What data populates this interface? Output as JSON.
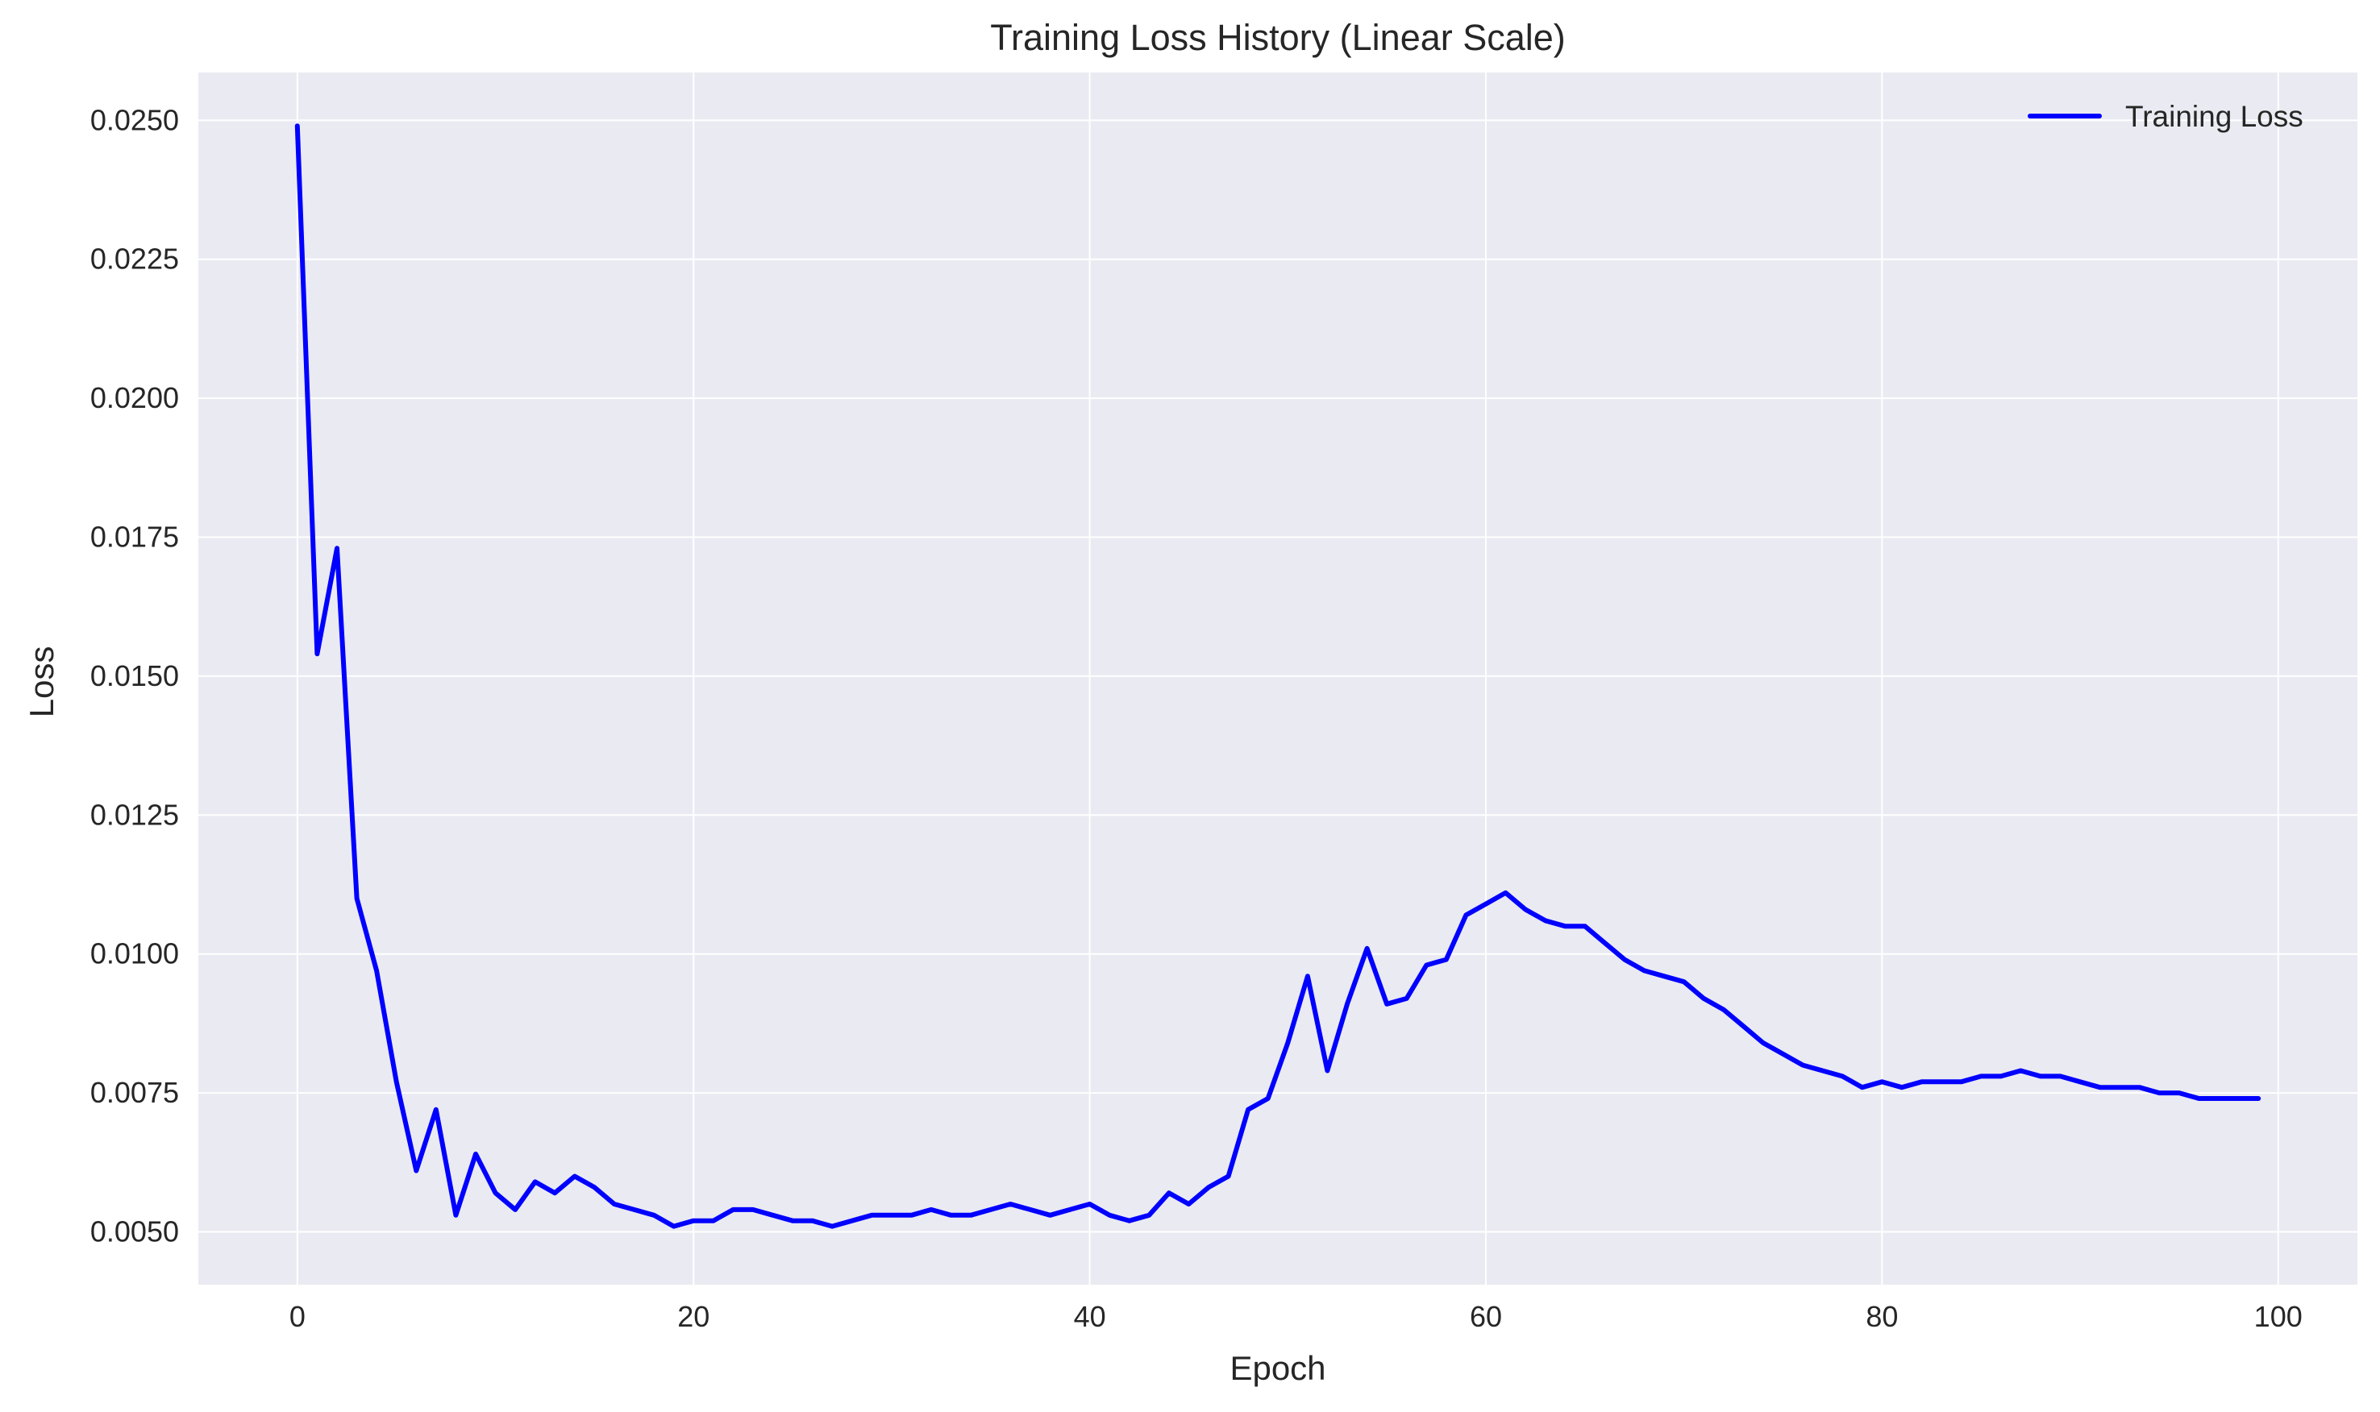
{
  "chart_data": {
    "type": "line",
    "title": "Training Loss History (Linear Scale)",
    "xlabel": "Epoch",
    "ylabel": "Loss",
    "xlim": [
      -5,
      104
    ],
    "ylim": [
      0.00405,
      0.02586
    ],
    "xticks": [
      0,
      20,
      40,
      60,
      80,
      100
    ],
    "xtick_labels": [
      "0",
      "20",
      "40",
      "60",
      "80",
      "100"
    ],
    "yticks": [
      0.005,
      0.0075,
      0.01,
      0.0125,
      0.015,
      0.0175,
      0.02,
      0.0225,
      0.025
    ],
    "ytick_labels": [
      "0.0050",
      "0.0075",
      "0.0100",
      "0.0125",
      "0.0150",
      "0.0175",
      "0.0200",
      "0.0225",
      "0.0250"
    ],
    "grid": true,
    "legend_position": "top-right",
    "background_color": "#eaeaf2",
    "series": [
      {
        "name": "Training Loss",
        "color": "#0000ff",
        "x": [
          0,
          1,
          2,
          3,
          4,
          5,
          6,
          7,
          8,
          9,
          10,
          11,
          12,
          13,
          14,
          15,
          16,
          17,
          18,
          19,
          20,
          21,
          22,
          23,
          24,
          25,
          26,
          27,
          28,
          29,
          30,
          31,
          32,
          33,
          34,
          35,
          36,
          37,
          38,
          39,
          40,
          41,
          42,
          43,
          44,
          45,
          46,
          47,
          48,
          49,
          50,
          51,
          52,
          53,
          54,
          55,
          56,
          57,
          58,
          59,
          60,
          61,
          62,
          63,
          64,
          65,
          66,
          67,
          68,
          69,
          70,
          71,
          72,
          73,
          74,
          75,
          76,
          77,
          78,
          79,
          80,
          81,
          82,
          83,
          84,
          85,
          86,
          87,
          88,
          89,
          90,
          91,
          92,
          93,
          94,
          95,
          96,
          97,
          98,
          99
        ],
        "values": [
          0.0249,
          0.0154,
          0.0173,
          0.011,
          0.0097,
          0.0077,
          0.0061,
          0.0072,
          0.0053,
          0.0064,
          0.0057,
          0.0054,
          0.0059,
          0.0057,
          0.006,
          0.0058,
          0.0055,
          0.0054,
          0.0053,
          0.0051,
          0.0052,
          0.0052,
          0.0054,
          0.0054,
          0.0053,
          0.0052,
          0.0052,
          0.0051,
          0.0052,
          0.0053,
          0.0053,
          0.0053,
          0.0054,
          0.0053,
          0.0053,
          0.0054,
          0.0055,
          0.0054,
          0.0053,
          0.0054,
          0.0055,
          0.0053,
          0.0052,
          0.0053,
          0.0057,
          0.0055,
          0.0058,
          0.006,
          0.0072,
          0.0074,
          0.0084,
          0.0096,
          0.0079,
          0.0091,
          0.0101,
          0.0091,
          0.0092,
          0.0098,
          0.0099,
          0.0107,
          0.0109,
          0.0111,
          0.0108,
          0.0106,
          0.0105,
          0.0105,
          0.0102,
          0.0099,
          0.0097,
          0.0096,
          0.0095,
          0.0092,
          0.009,
          0.0087,
          0.0084,
          0.0082,
          0.008,
          0.0079,
          0.0078,
          0.0076,
          0.0077,
          0.0076,
          0.0077,
          0.0077,
          0.0077,
          0.0078,
          0.0078,
          0.0079,
          0.0078,
          0.0078,
          0.0077,
          0.0076,
          0.0076,
          0.0076,
          0.0075,
          0.0075,
          0.0074,
          0.0074,
          0.0074,
          0.0074
        ]
      }
    ]
  }
}
